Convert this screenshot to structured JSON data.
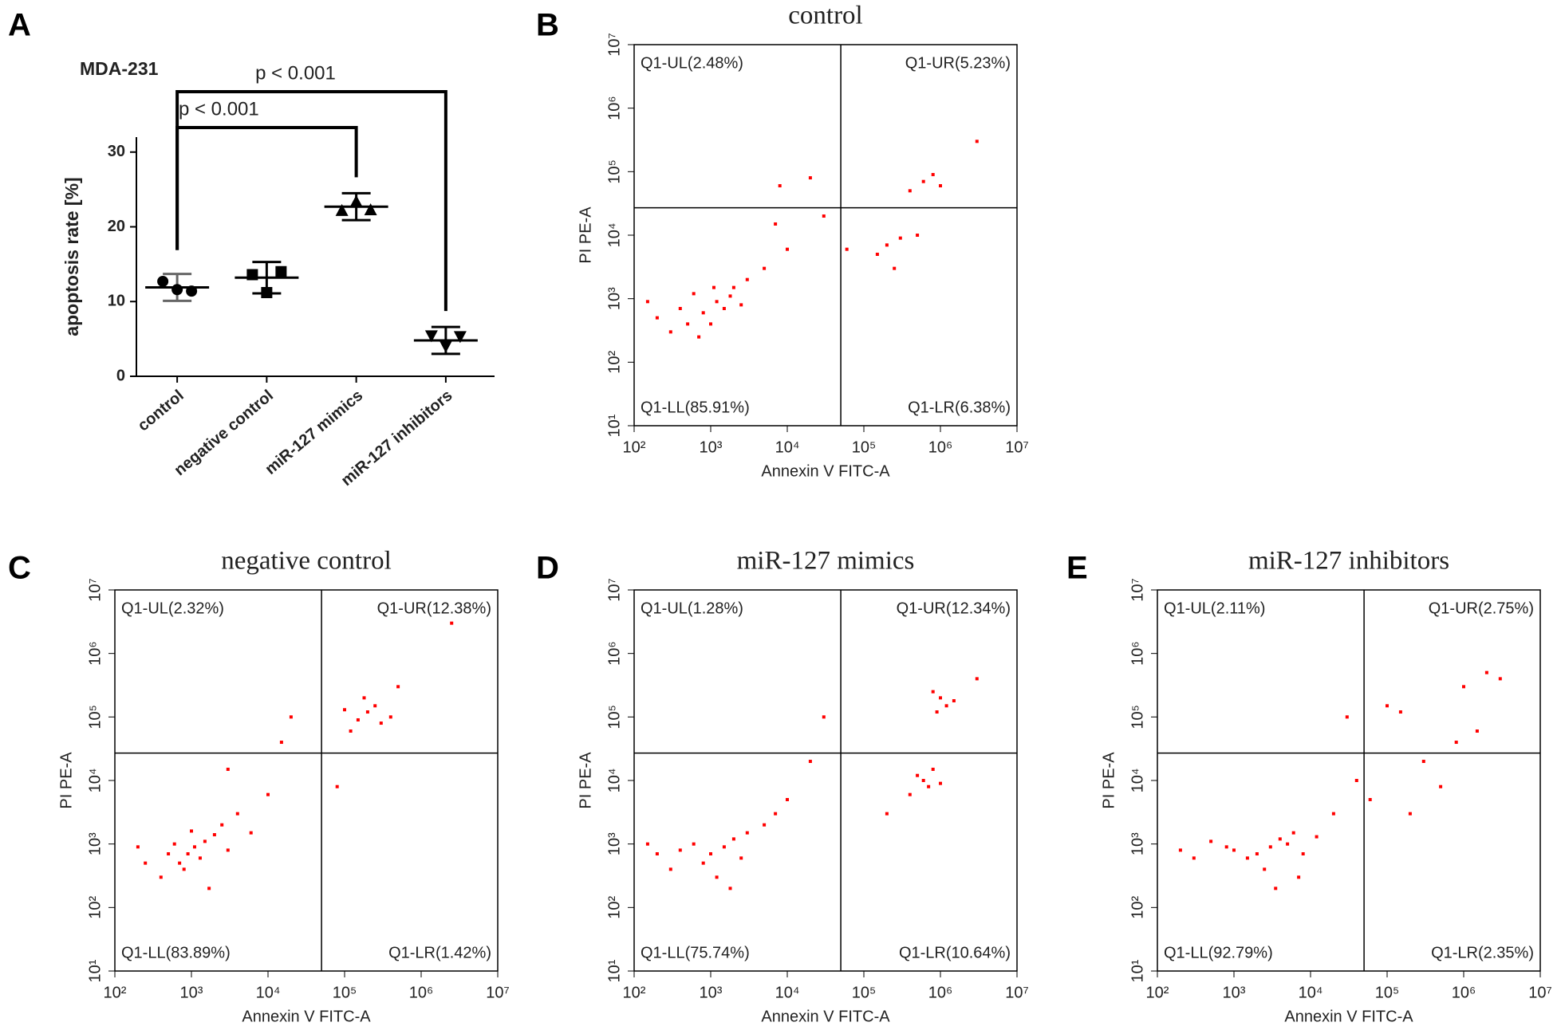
{
  "chart_data": [
    {
      "type": "dotplot",
      "panel_label": "A",
      "title": "MDA-231",
      "y_label": "apoptosis rate [%]",
      "categories": [
        "control",
        "negative control",
        "miR-127 mimics",
        "miR-127 inhibitors"
      ],
      "values": [
        11.9,
        13.2,
        22.7,
        4.8
      ],
      "errors": [
        1.8,
        2.1,
        1.8,
        1.8
      ],
      "points": [
        [
          12.7,
          11.6,
          11.4
        ],
        [
          13.6,
          11.2,
          14.0
        ],
        [
          22.2,
          23.4,
          22.3
        ],
        [
          5.4,
          4.0,
          5.3
        ]
      ],
      "markers": [
        "circle",
        "square",
        "triangle",
        "triangle-down"
      ],
      "ylim": [
        0,
        32
      ],
      "yticks": [
        0,
        10,
        20,
        30
      ],
      "brackets": [
        {
          "label": "p < 0.001",
          "categories": [
            "control",
            "miR-127 mimics"
          ]
        },
        {
          "label": "p < 0.001",
          "categories": [
            "control",
            "miR-127 inhibitors"
          ]
        }
      ]
    },
    {
      "type": "scatter",
      "panel_label": "B",
      "title": "control",
      "x_label": "Annexin V FITC-A",
      "y_label": "PI PE-A",
      "log_scale": true,
      "color": "#ff0000",
      "gates": {
        "x": 50000,
        "y": 27000
      },
      "quadrant_labels": {
        "UL": "Q1-UL(2.48%)",
        "UR": "Q1-UR(5.23%)",
        "LL": "Q1-LL(85.91%)",
        "LR": "Q1-LR(6.38%)"
      },
      "xlim": [
        100,
        10000000
      ],
      "ylim": [
        10,
        10000000
      ],
      "xticks": [
        {
          "value": 100,
          "label": "10²"
        },
        {
          "value": 1000,
          "label": "10³"
        },
        {
          "value": 10000,
          "label": "10⁴"
        },
        {
          "value": 100000,
          "label": "10⁵"
        },
        {
          "value": 1000000,
          "label": "10⁶"
        },
        {
          "value": 10000000,
          "label": "10⁷"
        }
      ],
      "yticks": [
        {
          "value": 10,
          "label": "10¹"
        },
        {
          "value": 100,
          "label": "10²"
        },
        {
          "value": 1000,
          "label": "10³"
        },
        {
          "value": 10000,
          "label": "10⁴"
        },
        {
          "value": 100000,
          "label": "10⁵"
        },
        {
          "value": 1000000,
          "label": "10⁶"
        },
        {
          "value": 10000000,
          "label": "10⁷"
        }
      ],
      "x": [
        800,
        1200,
        500,
        2000,
        1500,
        3000,
        600,
        300,
        1000,
        2500,
        400,
        5000,
        700,
        1800,
        1100,
        10000,
        20000,
        8000,
        30000,
        600000,
        800000,
        400000,
        1000000,
        200000,
        300000,
        150000,
        500000,
        250000,
        60000,
        3000000,
        200,
        150,
        7000
      ],
      "y": [
        600,
        900,
        400,
        1500,
        700,
        2000,
        1200,
        300,
        400,
        800,
        700,
        3000,
        250,
        1100,
        1500,
        6000,
        80000,
        60000,
        20000,
        70000,
        90000,
        50000,
        60000,
        7000,
        9000,
        5000,
        10000,
        3000,
        6000,
        300000,
        500,
        900,
        15000
      ]
    },
    {
      "type": "scatter",
      "panel_label": "C",
      "title": "negative control",
      "x_label": "Annexin V FITC-A",
      "y_label": "PI PE-A",
      "log_scale": true,
      "color": "#ff0000",
      "gates": {
        "x": 50000,
        "y": 27000
      },
      "quadrant_labels": {
        "UL": "Q1-UL(2.32%)",
        "UR": "Q1-UR(12.38%)",
        "LL": "Q1-LL(83.89%)",
        "LR": "Q1-LR(1.42%)"
      },
      "xlim": [
        100,
        10000000
      ],
      "ylim": [
        10,
        10000000
      ],
      "xticks": [
        {
          "value": 100,
          "label": "10²"
        },
        {
          "value": 1000,
          "label": "10³"
        },
        {
          "value": 10000,
          "label": "10⁴"
        },
        {
          "value": 100000,
          "label": "10⁵"
        },
        {
          "value": 1000000,
          "label": "10⁶"
        },
        {
          "value": 10000000,
          "label": "10⁷"
        }
      ],
      "yticks": [
        {
          "value": 10,
          "label": "10¹"
        },
        {
          "value": 100,
          "label": "10²"
        },
        {
          "value": 1000,
          "label": "10³"
        },
        {
          "value": 10000,
          "label": "10⁴"
        },
        {
          "value": 100000,
          "label": "10⁵"
        },
        {
          "value": 1000000,
          "label": "10⁶"
        },
        {
          "value": 10000000,
          "label": "10⁷"
        }
      ],
      "x": [
        900,
        1100,
        700,
        1500,
        2000,
        600,
        800,
        1300,
        2500,
        3000,
        500,
        400,
        1000,
        1700,
        4000,
        6000,
        10000,
        3000,
        20000,
        200000,
        150000,
        250000,
        300000,
        180000,
        120000,
        400000,
        100000,
        500000,
        2500000,
        200,
        250,
        15000,
        80000
      ],
      "y": [
        700,
        900,
        500,
        1100,
        1400,
        1000,
        400,
        600,
        2000,
        800,
        700,
        300,
        1600,
        200,
        3000,
        1500,
        6000,
        15000,
        100000,
        120000,
        90000,
        150000,
        80000,
        200000,
        60000,
        100000,
        130000,
        300000,
        3000000,
        900,
        500,
        40000,
        8000
      ]
    },
    {
      "type": "scatter",
      "panel_label": "D",
      "title": "miR-127 mimics",
      "x_label": "Annexin V FITC-A",
      "y_label": "PI PE-A",
      "log_scale": true,
      "color": "#ff0000",
      "gates": {
        "x": 50000,
        "y": 27000
      },
      "quadrant_labels": {
        "UL": "Q1-UL(1.28%)",
        "UR": "Q1-UR(12.34%)",
        "LL": "Q1-LL(75.74%)",
        "LR": "Q1-LR(10.64%)"
      },
      "xlim": [
        100,
        10000000
      ],
      "ylim": [
        10,
        10000000
      ],
      "xticks": [
        {
          "value": 100,
          "label": "10²"
        },
        {
          "value": 1000,
          "label": "10³"
        },
        {
          "value": 10000,
          "label": "10⁴"
        },
        {
          "value": 100000,
          "label": "10⁵"
        },
        {
          "value": 1000000,
          "label": "10⁶"
        },
        {
          "value": 10000000,
          "label": "10⁷"
        }
      ],
      "yticks": [
        {
          "value": 10,
          "label": "10¹"
        },
        {
          "value": 100,
          "label": "10²"
        },
        {
          "value": 1000,
          "label": "10³"
        },
        {
          "value": 10000,
          "label": "10⁴"
        },
        {
          "value": 100000,
          "label": "10⁵"
        },
        {
          "value": 1000000,
          "label": "10⁶"
        },
        {
          "value": 10000000,
          "label": "10⁷"
        }
      ],
      "x": [
        1500,
        1000,
        2000,
        800,
        3000,
        600,
        1200,
        5000,
        400,
        2500,
        300,
        7000,
        1800,
        200,
        10000,
        20000,
        1000000,
        1200000,
        800000,
        1500000,
        900000,
        600000,
        700000,
        500000,
        400000,
        800000,
        1000000,
        3000000,
        200000,
        30000,
        150
      ],
      "y": [
        900,
        700,
        1200,
        500,
        1500,
        1000,
        300,
        2000,
        800,
        600,
        400,
        3000,
        200,
        700,
        5000,
        20000,
        200000,
        150000,
        250000,
        180000,
        120000,
        10000,
        8000,
        12000,
        6000,
        15000,
        9000,
        400000,
        3000,
        100000,
        1000
      ]
    },
    {
      "type": "scatter",
      "panel_label": "E",
      "title": "miR-127 inhibitors",
      "x_label": "Annexin V FITC-A",
      "y_label": "PI PE-A",
      "log_scale": true,
      "color": "#ff0000",
      "gates": {
        "x": 50000,
        "y": 27000
      },
      "quadrant_labels": {
        "UL": "Q1-UL(2.11%)",
        "UR": "Q1-UR(2.75%)",
        "LL": "Q1-LL(92.79%)",
        "LR": "Q1-LR(2.35%)"
      },
      "xlim": [
        100,
        10000000
      ],
      "ylim": [
        10,
        10000000
      ],
      "xticks": [
        {
          "value": 100,
          "label": "10²"
        },
        {
          "value": 1000,
          "label": "10³"
        },
        {
          "value": 10000,
          "label": "10⁴"
        },
        {
          "value": 100000,
          "label": "10⁵"
        },
        {
          "value": 1000000,
          "label": "10⁶"
        },
        {
          "value": 10000000,
          "label": "10⁷"
        }
      ],
      "yticks": [
        {
          "value": 10,
          "label": "10¹"
        },
        {
          "value": 100,
          "label": "10²"
        },
        {
          "value": 1000,
          "label": "10³"
        },
        {
          "value": 10000,
          "label": "10⁴"
        },
        {
          "value": 100000,
          "label": "10⁵"
        },
        {
          "value": 1000000,
          "label": "10⁶"
        },
        {
          "value": 10000000,
          "label": "10⁷"
        }
      ],
      "x": [
        3000,
        2000,
        4000,
        1500,
        5000,
        1000,
        6000,
        2500,
        800,
        8000,
        500,
        3500,
        12000,
        300,
        200,
        7000,
        20000,
        40000,
        30000,
        100000,
        150000,
        300000,
        1000000,
        2000000,
        1500000,
        500000,
        200000,
        800000,
        3000000,
        60000
      ],
      "y": [
        900,
        700,
        1200,
        600,
        1000,
        800,
        1500,
        400,
        900,
        700,
        1100,
        200,
        1300,
        600,
        800,
        300,
        3000,
        10000,
        100000,
        150000,
        120000,
        20000,
        300000,
        500000,
        60000,
        8000,
        3000,
        40000,
        400000,
        5000
      ]
    }
  ]
}
